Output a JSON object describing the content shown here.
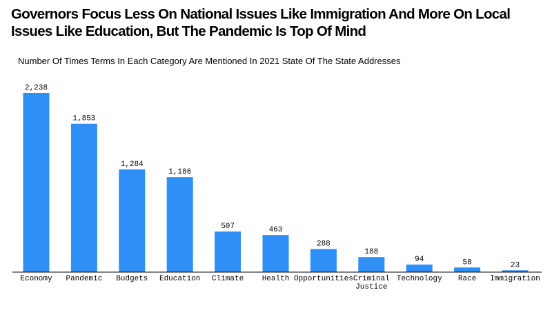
{
  "colors": {
    "bar": "#2e8ff7",
    "axis": "#000000",
    "text": "#000000"
  },
  "chart_data": {
    "type": "bar",
    "title": "Governors Focus Less On National Issues Like Immigration And More On Local Issues Like Education, But The Pandemic Is Top Of Mind",
    "subtitle": "Number Of Times Terms In Each Category Are Mentioned In 2021 State Of The State Addresses",
    "categories": [
      "Economy",
      "Pandemic",
      "Budgets",
      "Education",
      "Climate",
      "Health",
      "Opportunities",
      "Criminal Justice",
      "Technology",
      "Race",
      "Immigration"
    ],
    "values": [
      2238,
      1853,
      1284,
      1186,
      507,
      463,
      288,
      188,
      94,
      58,
      23
    ],
    "data_labels": [
      "2,238",
      "1,853",
      "1,284",
      "1,186",
      "507",
      "463",
      "288",
      "188",
      "94",
      "58",
      "23"
    ],
    "xlabel": "",
    "ylabel": "",
    "ylim": [
      0,
      2238
    ],
    "grid": false,
    "legend": "none"
  }
}
